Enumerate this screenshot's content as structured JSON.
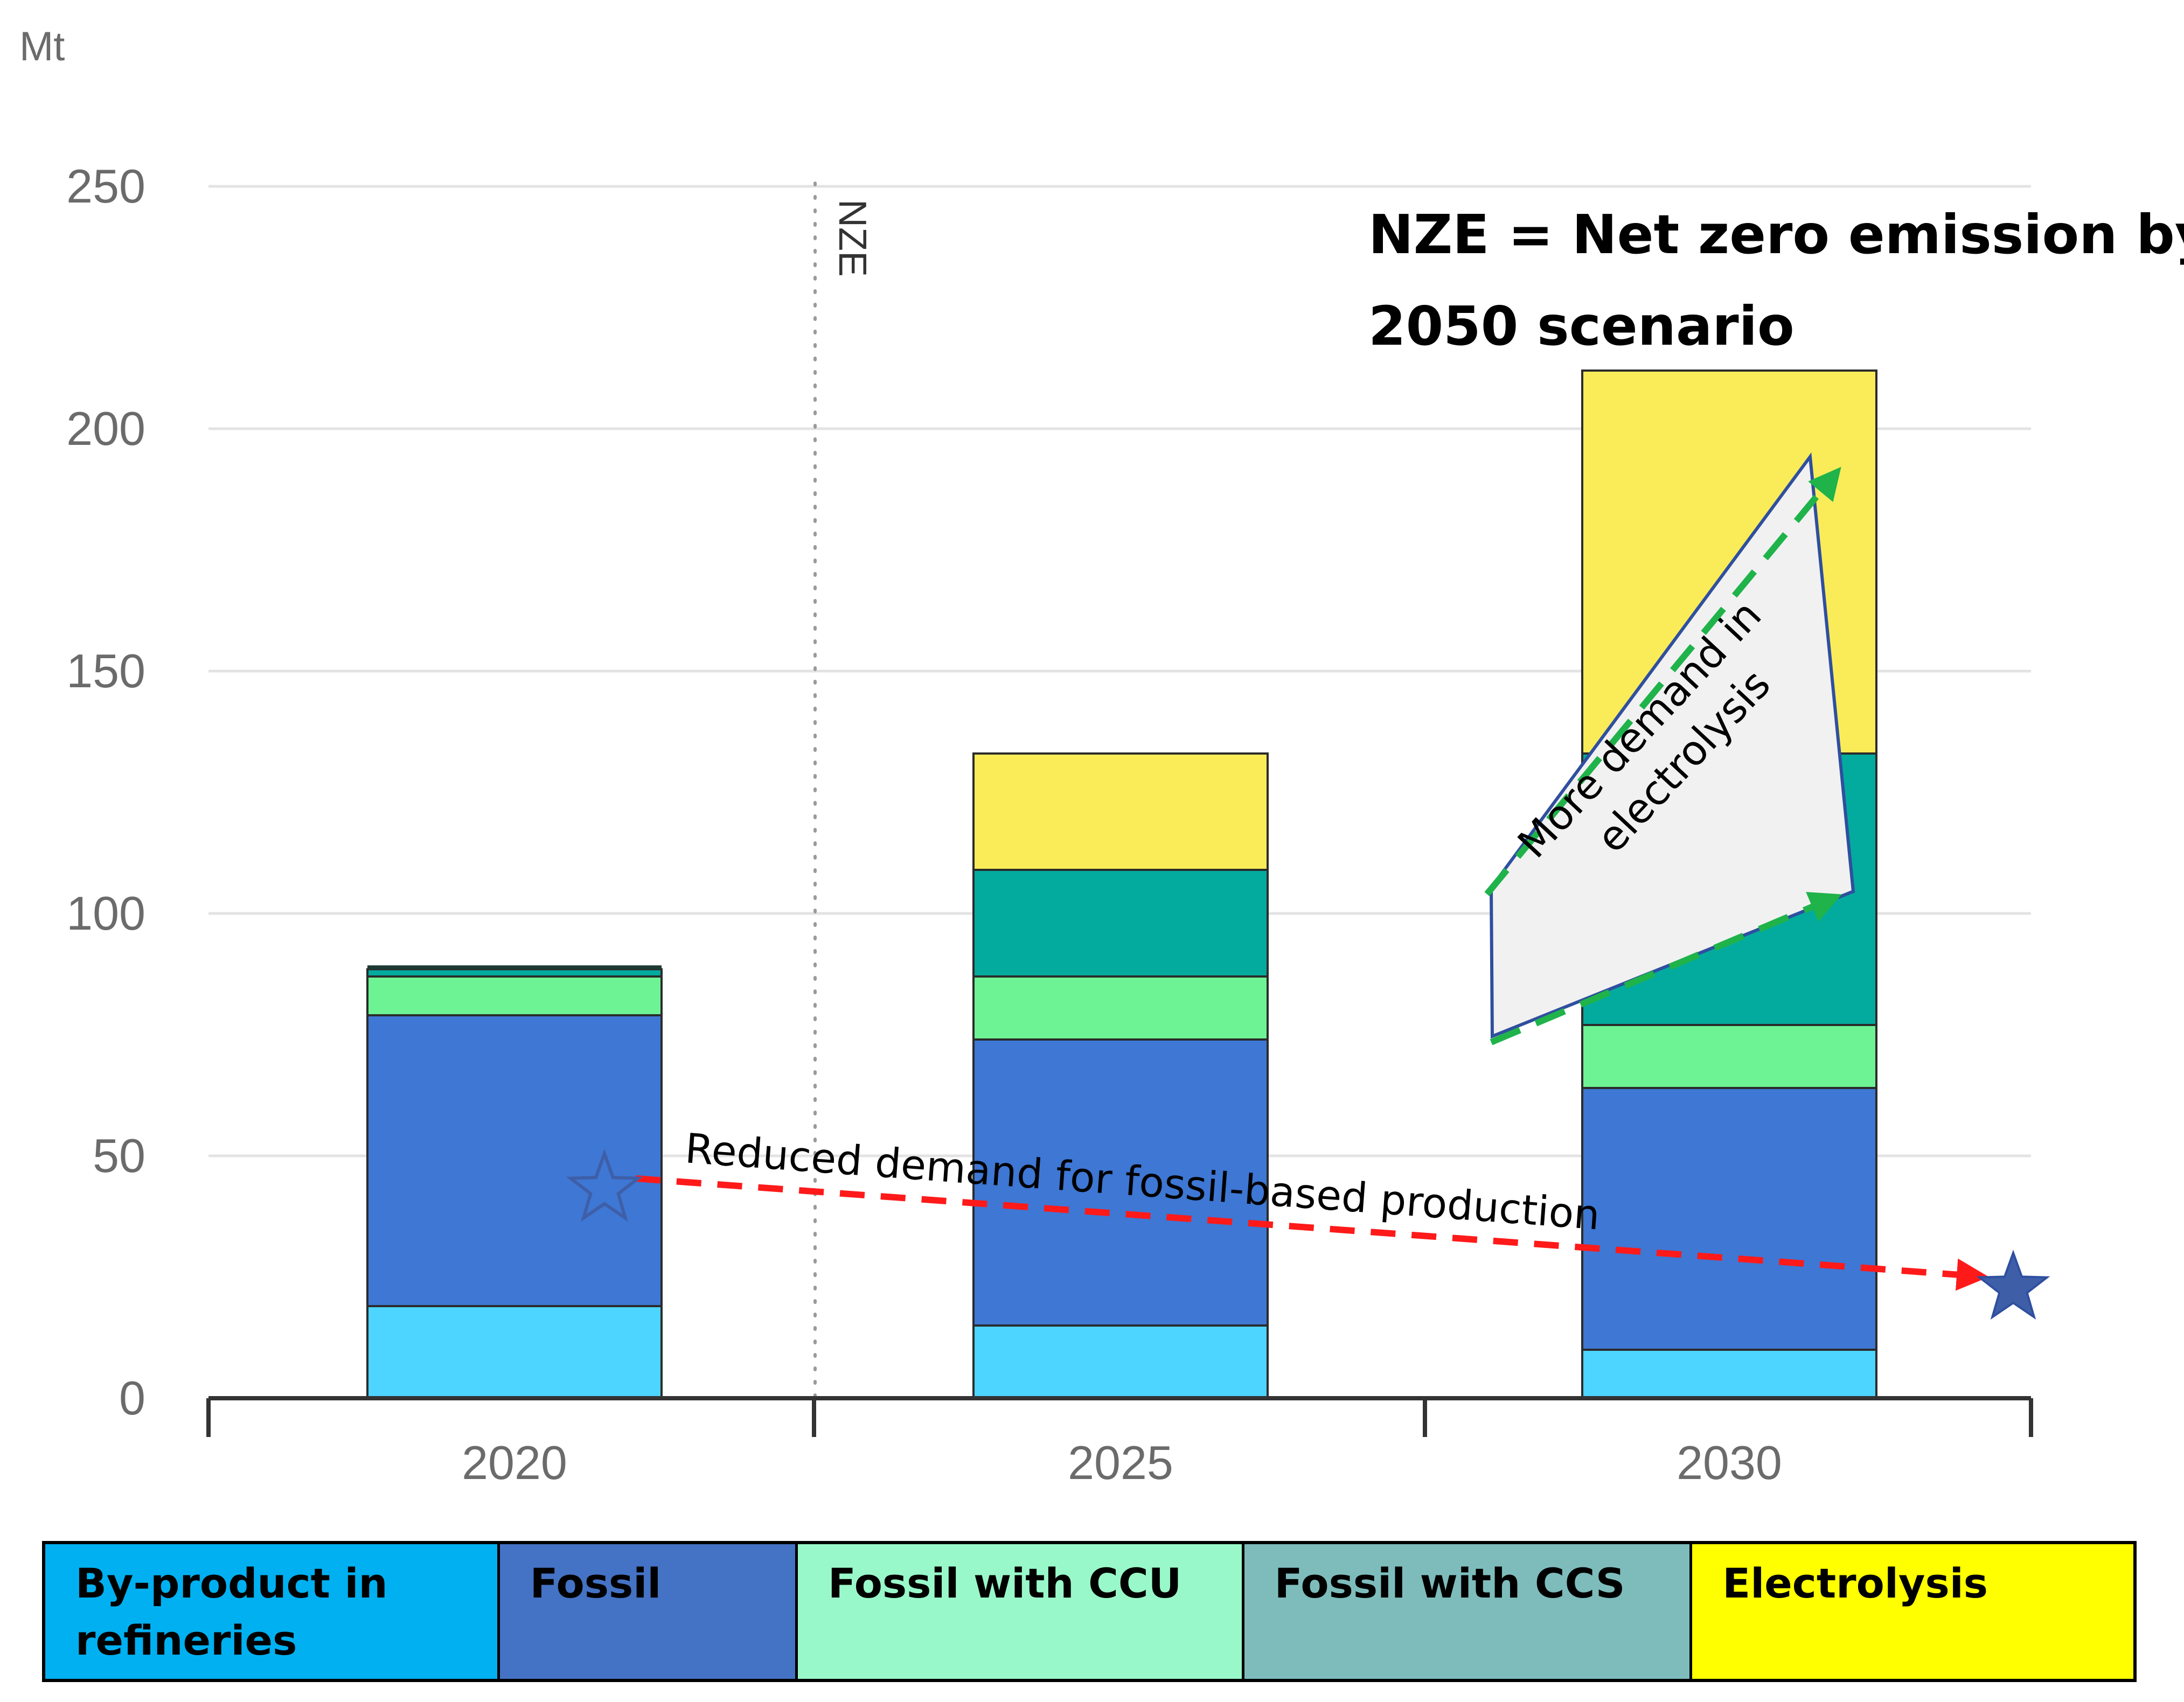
{
  "chart_data": {
    "type": "bar",
    "stacked": true,
    "unit_label": "Mt",
    "categories": [
      "2020",
      "2025",
      "2030"
    ],
    "ylim": [
      0,
      250
    ],
    "yticks": [
      0,
      50,
      100,
      150,
      200,
      250
    ],
    "grid": true,
    "series": [
      {
        "name": "By-product in refineries",
        "color": "#4DD4FF",
        "values": [
          19,
          15,
          10
        ]
      },
      {
        "name": "Fossil",
        "color": "#3E77D4",
        "values": [
          60,
          59,
          54
        ]
      },
      {
        "name": "Fossil with CCU",
        "color": "#6DF394",
        "values": [
          8,
          13,
          13
        ]
      },
      {
        "name": "Fossil with CCS",
        "color": "#03AB9E",
        "values": [
          1.5,
          22,
          56
        ]
      },
      {
        "name": "Electrolysis",
        "color": "#F9EC58",
        "values": [
          0,
          24,
          79
        ]
      }
    ],
    "extra_2020_cap": {
      "color": "#1f3a33",
      "value": 0.8
    },
    "vertical_marker": {
      "label": "NZE",
      "position": "between 2020 and 2025"
    },
    "annotations": {
      "note": [
        "NZE = Net zero emission by",
        "2050 scenario"
      ],
      "fossil_arrow": "Reduced demand for fossil-based production",
      "electrolysis_box": [
        "More demand in",
        "electrolysis"
      ]
    }
  },
  "legend": {
    "items": [
      {
        "label": "By-product in refineries",
        "color": "#00B0F0"
      },
      {
        "label": "Fossil",
        "color": "#4472C4"
      },
      {
        "label": "Fossil with CCU",
        "color": "#99F8C9"
      },
      {
        "label": "Fossil with CCS",
        "color": "#7EBCBC"
      },
      {
        "label": "Electrolysis",
        "color": "#FFFF00"
      }
    ]
  }
}
